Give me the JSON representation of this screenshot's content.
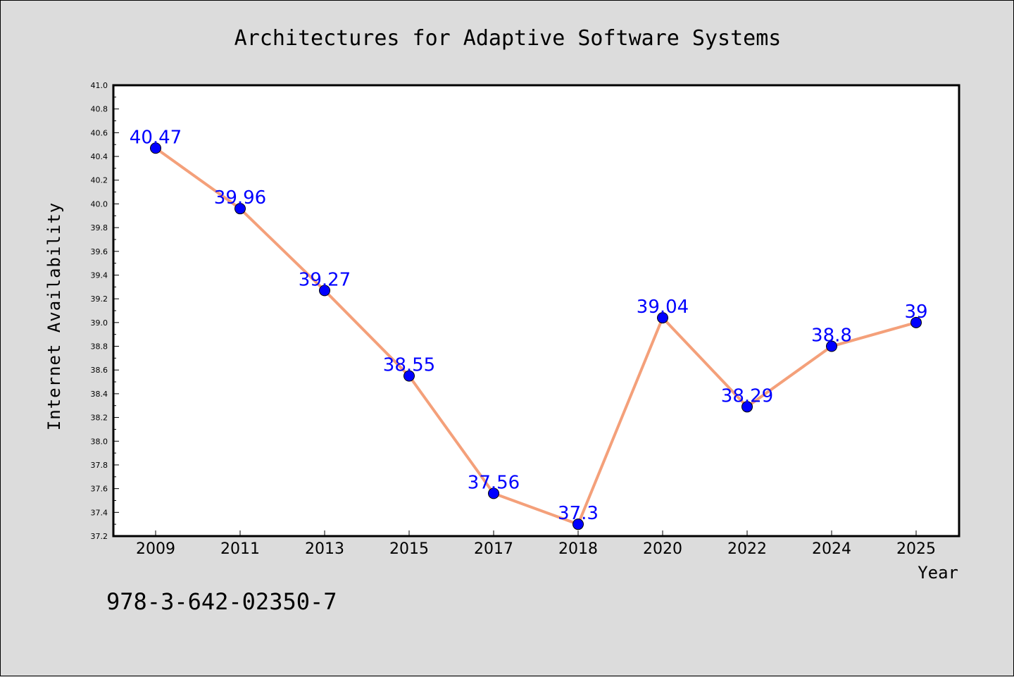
{
  "footnote": "978-3-642-02350-7",
  "colors": {
    "background": "#dcdcdc",
    "plot_background": "#ffffff",
    "line": "#f4a07a",
    "marker": "#0000ff",
    "data_label": "#0000ff"
  },
  "chart_data": {
    "type": "line",
    "title": "Architectures for Adaptive Software Systems",
    "xlabel": "Year",
    "ylabel": "Internet Availability",
    "categories": [
      "2009",
      "2011",
      "2013",
      "2015",
      "2017",
      "2018",
      "2020",
      "2022",
      "2024",
      "2025"
    ],
    "series": [
      {
        "values": [
          40.47,
          39.96,
          39.27,
          38.55,
          37.56,
          37.3,
          39.04,
          38.29,
          38.8,
          39
        ]
      }
    ],
    "data_labels": [
      "40.47",
      "39.96",
      "39.27",
      "38.55",
      "37.56",
      "37.3",
      "39.04",
      "38.29",
      "38.8",
      "39"
    ],
    "ylim": [
      37.2,
      41.0
    ],
    "yticks": [
      "37.2",
      "37.4",
      "37.6",
      "37.8",
      "38.0",
      "38.2",
      "38.4",
      "38.6",
      "38.8",
      "39.0",
      "39.2",
      "39.4",
      "39.6",
      "39.8",
      "40.0",
      "40.2",
      "40.4",
      "40.6",
      "40.8",
      "41.0"
    ],
    "grid": false,
    "legend": "none"
  }
}
